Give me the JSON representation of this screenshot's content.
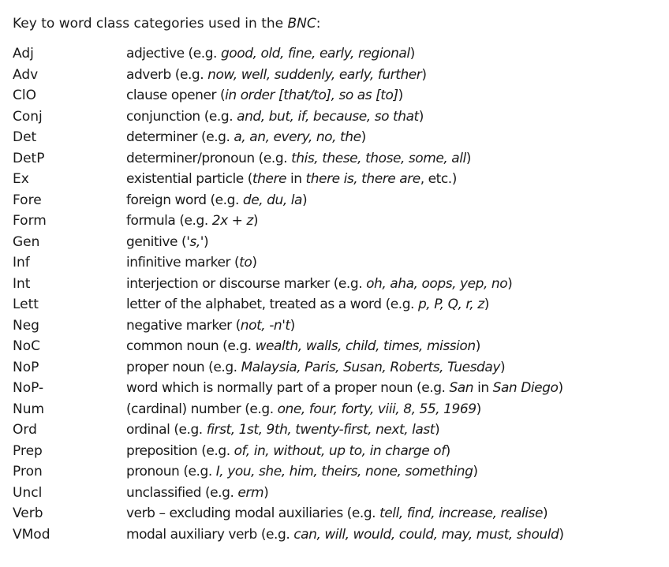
{
  "title": {
    "prefix": "Key to word class categories used in the ",
    "corpus": "BNC",
    "suffix": ":"
  },
  "rows": [
    {
      "code": "Adj",
      "desc": [
        {
          "t": "adjective (e.g. "
        },
        {
          "t": "good, old, fine, early, regional",
          "i": true
        },
        {
          "t": ")"
        }
      ]
    },
    {
      "code": "Adv",
      "desc": [
        {
          "t": "adverb (e.g. "
        },
        {
          "t": "now, well, suddenly, early, further",
          "i": true
        },
        {
          "t": ")"
        }
      ]
    },
    {
      "code": "ClO",
      "desc": [
        {
          "t": "clause opener ("
        },
        {
          "t": "in order [that/to], so as [to]",
          "i": true
        },
        {
          "t": ")"
        }
      ]
    },
    {
      "code": "Conj",
      "desc": [
        {
          "t": "conjunction (e.g. "
        },
        {
          "t": "and, but, if, because, so that",
          "i": true
        },
        {
          "t": ")"
        }
      ]
    },
    {
      "code": "Det",
      "desc": [
        {
          "t": "determiner (e.g. "
        },
        {
          "t": "a, an, every, no, the",
          "i": true
        },
        {
          "t": ")"
        }
      ]
    },
    {
      "code": "DetP",
      "desc": [
        {
          "t": "determiner/pronoun (e.g. "
        },
        {
          "t": "this, these, those, some, all",
          "i": true
        },
        {
          "t": ")"
        }
      ]
    },
    {
      "code": "Ex",
      "desc": [
        {
          "t": "existential particle ("
        },
        {
          "t": "there",
          "i": true
        },
        {
          "t": " in "
        },
        {
          "t": "there is, there are",
          "i": true
        },
        {
          "t": ", etc.)"
        }
      ]
    },
    {
      "code": "Fore",
      "desc": [
        {
          "t": "foreign word (e.g. "
        },
        {
          "t": "de, du, la",
          "i": true
        },
        {
          "t": ")"
        }
      ]
    },
    {
      "code": "Form",
      "desc": [
        {
          "t": "formula (e.g. "
        },
        {
          "t": "2x + z",
          "i": true
        },
        {
          "t": ")"
        }
      ]
    },
    {
      "code": "Gen",
      "desc": [
        {
          "t": "genitive ("
        },
        {
          "t": "'s,'",
          "i": true
        },
        {
          "t": ")"
        }
      ]
    },
    {
      "code": "Inf",
      "desc": [
        {
          "t": "infinitive marker ("
        },
        {
          "t": "to",
          "i": true
        },
        {
          "t": ")"
        }
      ]
    },
    {
      "code": "Int",
      "desc": [
        {
          "t": "interjection or discourse marker (e.g. "
        },
        {
          "t": "oh, aha, oops, yep, no",
          "i": true
        },
        {
          "t": ")"
        }
      ]
    },
    {
      "code": "Lett",
      "desc": [
        {
          "t": "letter of the alphabet, treated as a word (e.g. "
        },
        {
          "t": "p, P, Q, r, z",
          "i": true
        },
        {
          "t": ")"
        }
      ]
    },
    {
      "code": "Neg",
      "desc": [
        {
          "t": "negative marker ("
        },
        {
          "t": "not, -n't",
          "i": true
        },
        {
          "t": ")"
        }
      ]
    },
    {
      "code": "NoC",
      "desc": [
        {
          "t": "common noun (e.g. "
        },
        {
          "t": "wealth, walls, child, times, mission",
          "i": true
        },
        {
          "t": ")"
        }
      ]
    },
    {
      "code": "NoP",
      "desc": [
        {
          "t": "proper noun (e.g. "
        },
        {
          "t": "Malaysia, Paris, Susan, Roberts, Tuesday",
          "i": true
        },
        {
          "t": ")"
        }
      ]
    },
    {
      "code": "NoP-",
      "desc": [
        {
          "t": "word which is normally part of a proper noun (e.g. "
        },
        {
          "t": "San",
          "i": true
        },
        {
          "t": " in "
        },
        {
          "t": "San Diego",
          "i": true
        },
        {
          "t": ")"
        }
      ]
    },
    {
      "code": "Num",
      "desc": [
        {
          "t": "(cardinal) number (e.g. "
        },
        {
          "t": "one, four, forty, viii, 8, 55, 1969",
          "i": true
        },
        {
          "t": ")"
        }
      ]
    },
    {
      "code": "Ord",
      "desc": [
        {
          "t": "ordinal (e.g. "
        },
        {
          "t": "first, 1st, 9th, twenty-first, next, last",
          "i": true
        },
        {
          "t": ")"
        }
      ]
    },
    {
      "code": "Prep",
      "desc": [
        {
          "t": "preposition (e.g. "
        },
        {
          "t": "of, in, without, up to, in charge of",
          "i": true
        },
        {
          "t": ")"
        }
      ]
    },
    {
      "code": "Pron",
      "desc": [
        {
          "t": "pronoun (e.g. "
        },
        {
          "t": "I, you, she, him, theirs, none, something",
          "i": true
        },
        {
          "t": ")"
        }
      ]
    },
    {
      "code": "Uncl",
      "desc": [
        {
          "t": "unclassified (e.g. "
        },
        {
          "t": "erm",
          "i": true
        },
        {
          "t": ")"
        }
      ]
    },
    {
      "code": "Verb",
      "desc": [
        {
          "t": "verb – excluding modal auxiliaries (e.g. "
        },
        {
          "t": "tell, find, increase, realise",
          "i": true
        },
        {
          "t": ")"
        }
      ]
    },
    {
      "code": "VMod",
      "desc": [
        {
          "t": "modal auxiliary verb (e.g. "
        },
        {
          "t": "can, will, would, could, may, must, should",
          "i": true
        },
        {
          "t": ")"
        }
      ]
    }
  ]
}
